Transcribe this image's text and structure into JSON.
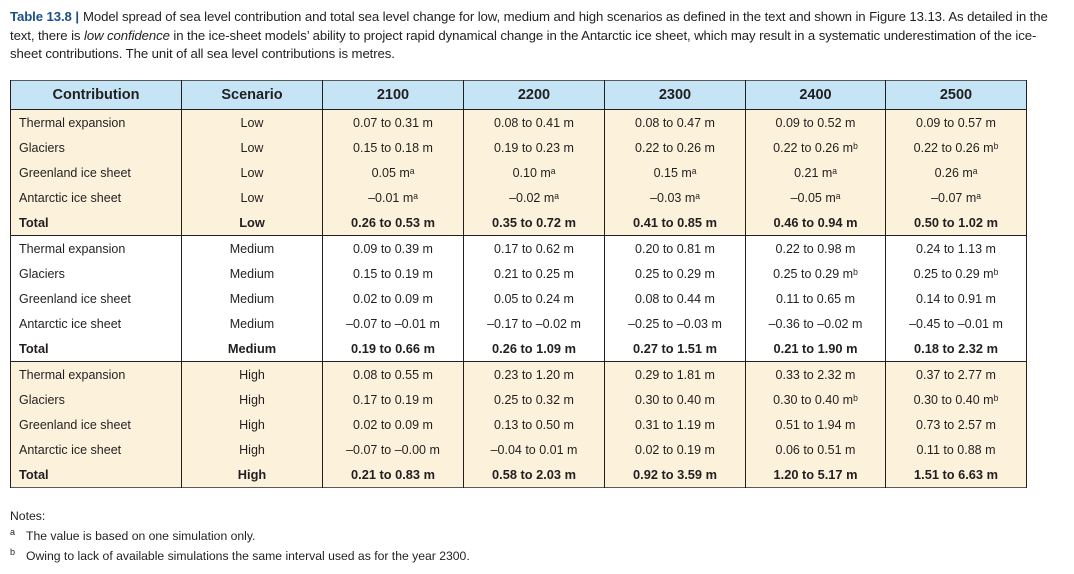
{
  "caption": {
    "label": "Table 13.8",
    "separator": "|",
    "text_before": "Model spread of sea level contribution and total sea level change for low, medium and high scenarios as defined in the text and shown in Figure 13.13. As detailed in the text, there is ",
    "emphasis": "low confidence",
    "text_after": " in the ice-sheet models’ ability to project rapid dynamical change in the Antarctic ice sheet, which may result in a systematic underestimation of the ice-sheet contributions. The unit of all sea level contributions is metres."
  },
  "table": {
    "headers": [
      "Contribution",
      "Scenario",
      "2100",
      "2200",
      "2300",
      "2400",
      "2500"
    ],
    "rows": [
      {
        "contribution": "Thermal expansion",
        "scenario": "Low",
        "values": [
          "0.07 to 0.31 m",
          "0.08 to 0.41 m",
          "0.08 to 0.47 m",
          "0.09 to 0.52 m",
          "0.09 to 0.57 m"
        ]
      },
      {
        "contribution": "Glaciers",
        "scenario": "Low",
        "values": [
          "0.15 to 0.18 m",
          "0.19 to 0.23 m",
          "0.22 to 0.26 m",
          "0.22 to 0.26 mᵇ",
          "0.22 to 0.26 mᵇ"
        ]
      },
      {
        "contribution": "Greenland ice sheet",
        "scenario": "Low",
        "values": [
          "0.05 mᵃ",
          "0.10 mᵃ",
          "0.15 mᵃ",
          "0.21 mᵃ",
          "0.26 mᵃ"
        ]
      },
      {
        "contribution": "Antarctic ice sheet",
        "scenario": "Low",
        "values": [
          "–0.01 mᵃ",
          "–0.02 mᵃ",
          "–0.03 mᵃ",
          "–0.05 mᵃ",
          "–0.07 mᵃ"
        ]
      },
      {
        "contribution": "Total",
        "scenario": "Low",
        "values": [
          "0.26 to 0.53 m",
          "0.35 to 0.72 m",
          "0.41 to 0.85 m",
          "0.46 to 0.94 m",
          "0.50 to 1.02 m"
        ]
      },
      {
        "contribution": "Thermal expansion",
        "scenario": "Medium",
        "values": [
          "0.09 to 0.39 m",
          "0.17 to 0.62 m",
          "0.20 to 0.81 m",
          "0.22 to 0.98 m",
          "0.24 to 1.13 m"
        ]
      },
      {
        "contribution": "Glaciers",
        "scenario": "Medium",
        "values": [
          "0.15 to 0.19 m",
          "0.21 to 0.25 m",
          "0.25 to 0.29 m",
          "0.25 to 0.29 mᵇ",
          "0.25 to 0.29 mᵇ"
        ]
      },
      {
        "contribution": "Greenland ice sheet",
        "scenario": "Medium",
        "values": [
          "0.02 to 0.09 m",
          "0.05 to 0.24 m",
          "0.08 to 0.44 m",
          "0.11 to 0.65 m",
          "0.14 to 0.91 m"
        ]
      },
      {
        "contribution": "Antarctic ice sheet",
        "scenario": "Medium",
        "values": [
          "–0.07 to –0.01 m",
          "–0.17 to –0.02 m",
          "–0.25 to –0.03 m",
          "–0.36 to –0.02 m",
          "–0.45 to –0.01 m"
        ]
      },
      {
        "contribution": "Total",
        "scenario": "Medium",
        "values": [
          "0.19 to 0.66 m",
          "0.26 to 1.09 m",
          "0.27 to 1.51 m",
          "0.21 to 1.90 m",
          "0.18 to 2.32 m"
        ]
      },
      {
        "contribution": "Thermal expansion",
        "scenario": "High",
        "values": [
          "0.08 to 0.55 m",
          "0.23 to 1.20 m",
          "0.29 to 1.81 m",
          "0.33 to 2.32 m",
          "0.37 to 2.77 m"
        ]
      },
      {
        "contribution": "Glaciers",
        "scenario": "High",
        "values": [
          "0.17 to 0.19 m",
          "0.25 to 0.32 m",
          "0.30 to 0.40 m",
          "0.30 to 0.40 mᵇ",
          "0.30 to 0.40 mᵇ"
        ]
      },
      {
        "contribution": "Greenland ice sheet",
        "scenario": "High",
        "values": [
          "0.02 to 0.09 m",
          "0.13 to 0.50 m",
          "0.31 to 1.19 m",
          "0.51 to 1.94 m",
          "0.73 to 2.57 m"
        ]
      },
      {
        "contribution": "Antarctic ice sheet",
        "scenario": "High",
        "values": [
          "–0.07 to –0.00 m",
          "–0.04 to 0.01 m",
          "0.02 to 0.19 m",
          "0.06 to 0.51 m",
          "0.11 to 0.88 m"
        ]
      },
      {
        "contribution": "Total",
        "scenario": "High",
        "values": [
          "0.21 to 0.83 m",
          "0.58 to 2.03 m",
          "0.92 to 3.59 m",
          "1.20 to 5.17 m",
          "1.51 to 6.63 m"
        ]
      }
    ]
  },
  "notes": {
    "title": "Notes:",
    "items": [
      {
        "marker": "a",
        "text": "The value is based on one simulation only."
      },
      {
        "marker": "b",
        "text": "Owing to lack of available simulations the same interval used as for the year 2300."
      }
    ]
  },
  "colors": {
    "header_bg": "#c5e4f5",
    "tan_row_bg": "#fcf1db",
    "title_blue": "#1b4f8a"
  }
}
